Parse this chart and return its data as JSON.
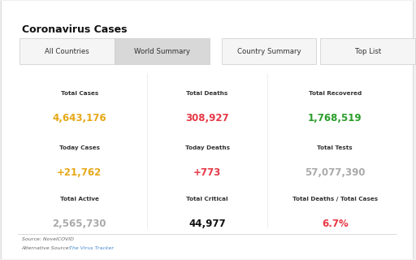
{
  "title": "Coronavirus Cases",
  "tabs": [
    "All Countries",
    "World Summary",
    "Country Summary",
    "Top List"
  ],
  "active_tab": 1,
  "stats": [
    {
      "label": "Total Cases",
      "value": "4,643,176",
      "color": "#e6a817",
      "row": 0,
      "col": 0
    },
    {
      "label": "Total Deaths",
      "value": "308,927",
      "color": "#e63946",
      "row": 0,
      "col": 1
    },
    {
      "label": "Total Recovered",
      "value": "1,768,519",
      "color": "#2a9d2a",
      "row": 0,
      "col": 2
    },
    {
      "label": "Today Cases",
      "value": "+21,762",
      "color": "#e6a817",
      "row": 1,
      "col": 0
    },
    {
      "label": "Today Deaths",
      "value": "+773",
      "color": "#e63946",
      "row": 1,
      "col": 1
    },
    {
      "label": "Total Tests",
      "value": "57,077,390",
      "color": "#aaaaaa",
      "row": 1,
      "col": 2
    },
    {
      "label": "Total Active",
      "value": "2,565,730",
      "color": "#aaaaaa",
      "row": 2,
      "col": 0
    },
    {
      "label": "Total Critical",
      "value": "44,977",
      "color": "#111111",
      "row": 2,
      "col": 1
    },
    {
      "label": "Total Deaths / Total Cases",
      "value": "6.7%",
      "color": "#e63946",
      "row": 2,
      "col": 2
    }
  ],
  "source_text": "Source: NovelCOVID",
  "alt_source_text": "Alternative Source: The Virus Tracker",
  "bg_color": "#f0f0f0",
  "card_color": "#ffffff",
  "tab_active_color": "#d8d8d8",
  "tab_inactive_color": "#f5f5f5",
  "label_color": "#333333",
  "title_color": "#111111"
}
